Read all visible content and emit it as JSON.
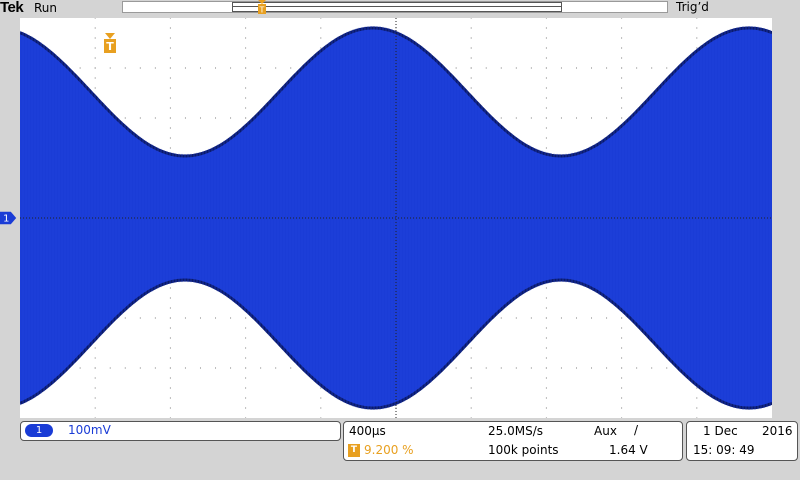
{
  "topbar": {
    "brand": "Tek",
    "acq_state": "Run",
    "trigger_status": "Trig’d"
  },
  "markers": {
    "ground_label": "1",
    "trigger_label": "T"
  },
  "waveform": {
    "color": "#1a3cd6",
    "edge_color": "#0a1a6a",
    "grid_color": "#7a7a7a"
  },
  "status": {
    "channel": {
      "number": "1",
      "scale": "100mV"
    },
    "horizontal": {
      "time_per_div": "400µs",
      "sample_rate": "25.0MS/s",
      "trigger_source": "Aux",
      "trigger_slope": "/",
      "trigger_position_icon": "T",
      "trigger_position": "9.200 %",
      "record_length": "100k points",
      "trigger_level": "1.64 V"
    },
    "date": {
      "day_month": "1 Dec",
      "year": "2016",
      "time": "15: 09: 49"
    }
  }
}
